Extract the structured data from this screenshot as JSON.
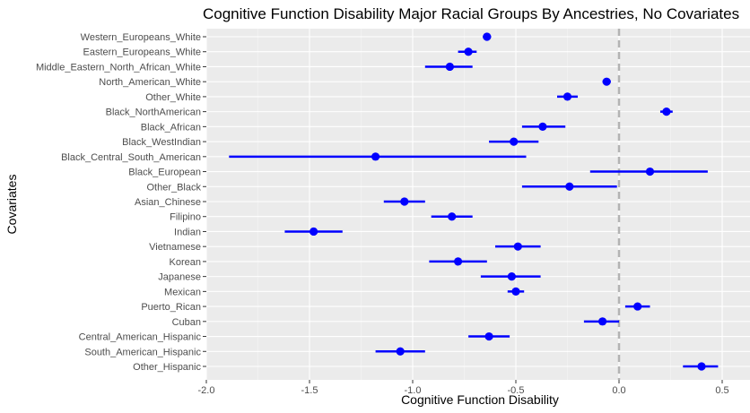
{
  "chart_data": {
    "type": "scatter",
    "subtype": "forest-plot",
    "title": "Cognitive Function Disability Major Racial Groups By Ancestries, No Covariates",
    "xlabel": "Cognitive Function Disability",
    "ylabel": "Covariates",
    "xlim": [
      -2.0,
      0.55
    ],
    "xticks": [
      -2.0,
      -1.5,
      -1.0,
      -0.5,
      0.0,
      0.5
    ],
    "xtick_labels": [
      "-2.0",
      "-1.5",
      "-1.0",
      "-0.5",
      "0.0",
      "0.5"
    ],
    "reference_line": 0.0,
    "grid": true,
    "legend": "none",
    "colors": {
      "point": "#0000ff",
      "panel": "#ebebeb",
      "grid_major": "#ffffff",
      "grid_minor": "#f5f5f5",
      "reference": "#b3b3b3"
    },
    "categories": [
      "Western_Europeans_White",
      "Eastern_Europeans_White",
      "Middle_Eastern_North_African_White",
      "North_American_White",
      "Other_White",
      "Black_NorthAmerican",
      "Black_African",
      "Black_WestIndian",
      "Black_Central_South_American",
      "Black_European",
      "Other_Black",
      "Asian_Chinese",
      "Filipino",
      "Indian",
      "Vietnamese",
      "Korean",
      "Japanese",
      "Mexican",
      "Puerto_Rican",
      "Cuban",
      "Central_American_Hispanic",
      "South_American_Hispanic",
      "Other_Hispanic"
    ],
    "estimate": [
      -0.64,
      -0.73,
      -0.82,
      -0.06,
      -0.25,
      0.23,
      -0.37,
      -0.51,
      -1.18,
      0.15,
      -0.24,
      -1.04,
      -0.81,
      -1.48,
      -0.49,
      -0.78,
      -0.52,
      -0.5,
      0.09,
      -0.08,
      -0.63,
      -1.06,
      0.4
    ],
    "lower": [
      -0.66,
      -0.78,
      -0.94,
      -0.08,
      -0.3,
      0.2,
      -0.47,
      -0.63,
      -1.89,
      -0.14,
      -0.47,
      -1.14,
      -0.91,
      -1.62,
      -0.6,
      -0.92,
      -0.67,
      -0.54,
      0.03,
      -0.17,
      -0.73,
      -1.18,
      0.31
    ],
    "upper": [
      -0.62,
      -0.69,
      -0.71,
      -0.04,
      -0.2,
      0.26,
      -0.26,
      -0.39,
      -0.45,
      0.43,
      -0.01,
      -0.94,
      -0.71,
      -1.34,
      -0.38,
      -0.64,
      -0.38,
      -0.46,
      0.15,
      0.0,
      -0.53,
      -0.94,
      0.48
    ]
  }
}
